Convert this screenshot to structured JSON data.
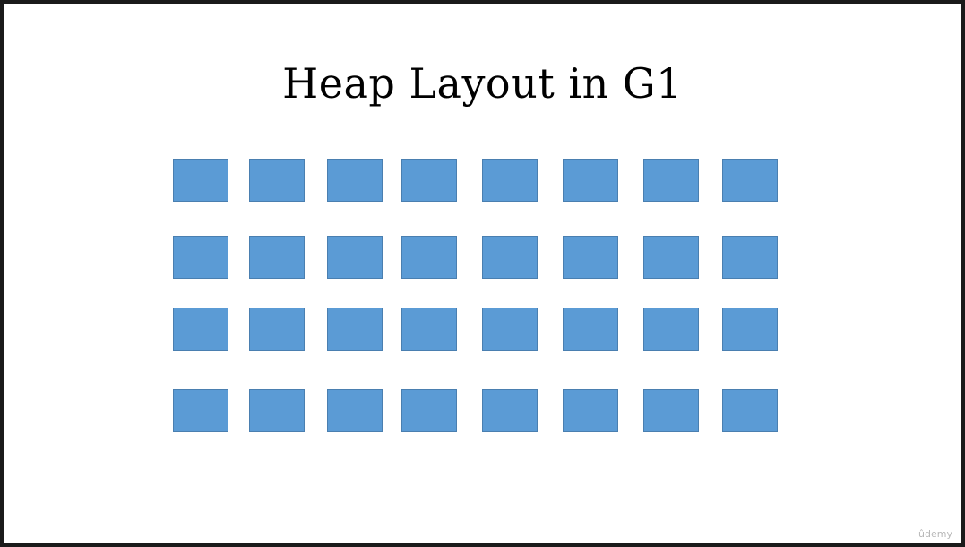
{
  "slide": {
    "title": "Heap Layout in G1",
    "watermark": "ûdemy"
  },
  "heap": {
    "rows": 4,
    "columns": 8,
    "region_color": "#5b9bd5",
    "region_border_color": "#4a7fb0"
  }
}
